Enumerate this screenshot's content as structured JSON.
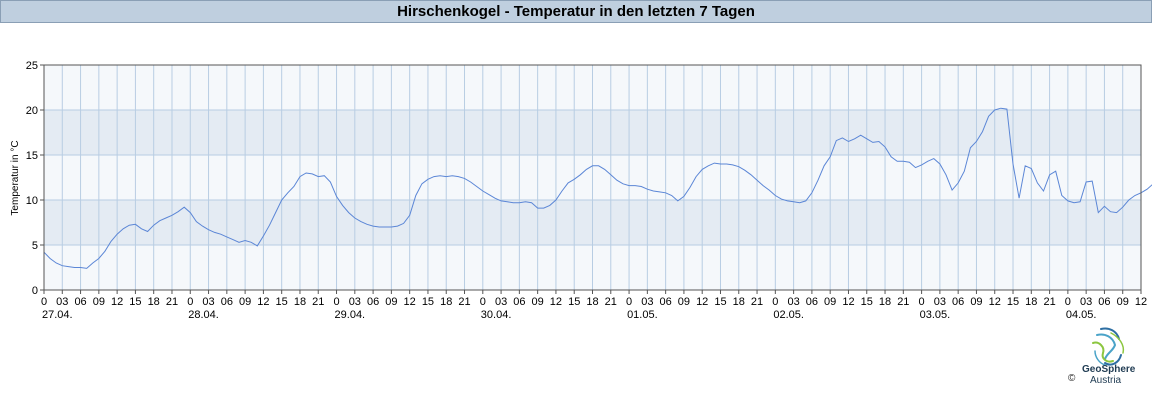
{
  "header": {
    "title": "Hirschenkogel - Temperatur in den letzten 7 Tagen"
  },
  "brand": {
    "name": "GeoSphere",
    "sub": "Austria",
    "copyright": "©",
    "logo_icon": "geosphere-logo-icon"
  },
  "colors": {
    "line": "#5b86d6",
    "band": "#e4ebf3",
    "plot_bg": "#f5f8fb",
    "gridline": "#b8cde3",
    "title_bg": "#bfcfdf"
  },
  "chart_data": {
    "type": "line",
    "title": "Hirschenkogel - Temperatur in den letzten 7 Tagen",
    "ylabel": "Temperatur in °C",
    "xlabel": "",
    "ylim": [
      0,
      25
    ],
    "yticks": [
      0,
      5,
      10,
      15,
      20,
      25
    ],
    "x_start": "27.04. 00:00",
    "x_end": "04.05. 12:00",
    "x_step_hours": 1,
    "hour_tick_labels": [
      "0",
      "03",
      "06",
      "09",
      "12",
      "15",
      "18",
      "21"
    ],
    "day_labels": [
      "27.04.",
      "28.04.",
      "29.04.",
      "30.04.",
      "01.05.",
      "02.05.",
      "03.05.",
      "04.05."
    ],
    "grid": true,
    "legend": "none",
    "series": [
      {
        "values": [
          4.2,
          3.5,
          3.0,
          2.7,
          2.6,
          2.5,
          2.5,
          2.4,
          3.0,
          3.5,
          4.3,
          5.4,
          6.2,
          6.8,
          7.2,
          7.3,
          6.8,
          6.5,
          7.2,
          7.7,
          8.0,
          8.3,
          8.7,
          9.2,
          8.6,
          7.6,
          7.1,
          6.7,
          6.4,
          6.2,
          5.9,
          5.6,
          5.3,
          5.5,
          5.3,
          4.9,
          6.0,
          7.2,
          8.6,
          10.0,
          10.8,
          11.5,
          12.6,
          13.0,
          12.9,
          12.6,
          12.7,
          12.0,
          10.4,
          9.4,
          8.6,
          8.0,
          7.6,
          7.3,
          7.1,
          7.0,
          7.0,
          7.0,
          7.1,
          7.4,
          8.3,
          10.5,
          11.8,
          12.3,
          12.6,
          12.7,
          12.6,
          12.7,
          12.6,
          12.4,
          12.0,
          11.5,
          11.0,
          10.6,
          10.2,
          9.9,
          9.8,
          9.7,
          9.7,
          9.8,
          9.7,
          9.1,
          9.1,
          9.4,
          10.0,
          11.0,
          11.9,
          12.3,
          12.8,
          13.4,
          13.8,
          13.8,
          13.4,
          12.8,
          12.2,
          11.8,
          11.6,
          11.6,
          11.5,
          11.2,
          11.0,
          10.9,
          10.8,
          10.5,
          9.9,
          10.4,
          11.4,
          12.6,
          13.4,
          13.8,
          14.1,
          14.0,
          14.0,
          13.9,
          13.7,
          13.3,
          12.8,
          12.2,
          11.6,
          11.1,
          10.5,
          10.1,
          9.9,
          9.8,
          9.7,
          9.9,
          10.8,
          12.2,
          13.8,
          14.8,
          16.6,
          16.9,
          16.5,
          16.8,
          17.2,
          16.8,
          16.4,
          16.5,
          15.9,
          14.8,
          14.3,
          14.3,
          14.2,
          13.6,
          13.9,
          14.3,
          14.6,
          14.0,
          12.8,
          11.1,
          11.9,
          13.2,
          15.8,
          16.5,
          17.6,
          19.3,
          20.0,
          20.2,
          20.1,
          14.0,
          10.2,
          13.8,
          13.5,
          11.9,
          11.0,
          12.8,
          13.2,
          10.5,
          9.9,
          9.7,
          9.8,
          12.0,
          12.1,
          8.6,
          9.3,
          8.7,
          8.6,
          9.2,
          10.0,
          10.5,
          10.8,
          11.2,
          11.8,
          12.2
        ]
      }
    ]
  }
}
